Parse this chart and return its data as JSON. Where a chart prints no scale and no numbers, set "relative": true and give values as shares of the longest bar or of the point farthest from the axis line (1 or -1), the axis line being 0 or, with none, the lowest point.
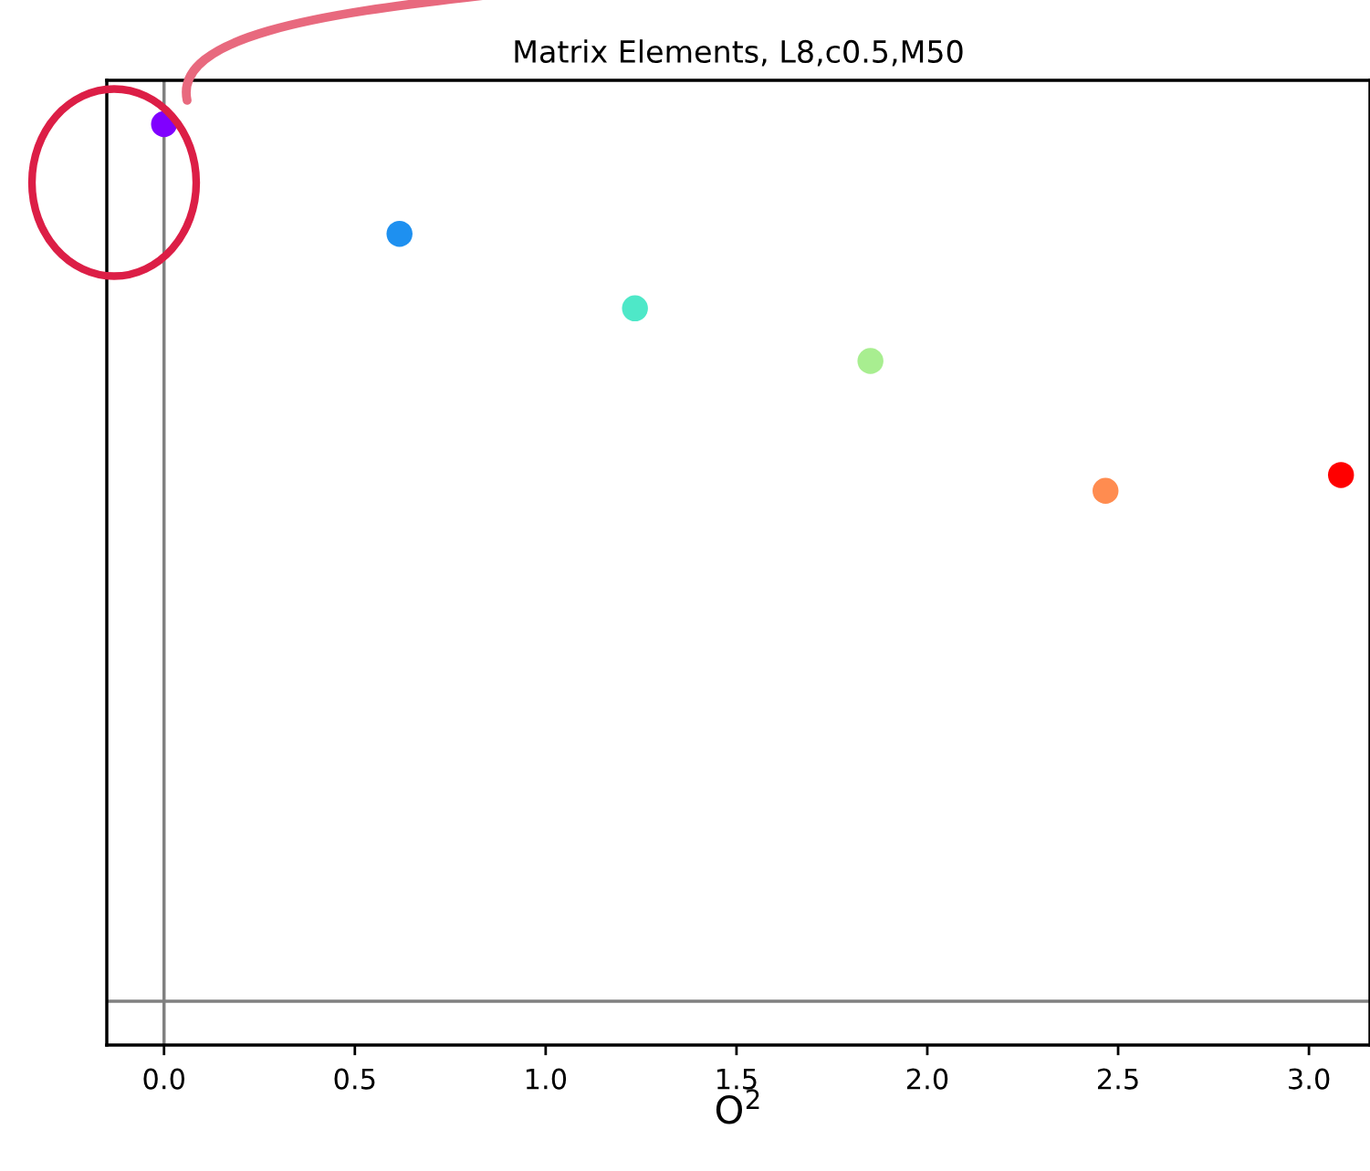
{
  "chart_data": {
    "type": "scatter",
    "title": "Matrix Elements, L8,c0.5,M50",
    "xlabel": "O$^{2}$",
    "x": [
      0,
      0.617,
      1.234,
      1.851,
      2.467,
      3.084
    ],
    "values": [
      1,
      0.875,
      0.79,
      0.73,
      0.582,
      0.6
    ],
    "colors": [
      "#8000ff",
      "#1e90f0",
      "#4ee8c8",
      "#a8ee90",
      "#ff8c50",
      "#ff0000"
    ],
    "relative": true,
    "xlim": [
      -0.15,
      3.16
    ],
    "xticks": [
      {
        "value": 0,
        "label": "0.0"
      },
      {
        "value": 0.5,
        "label": "0.5"
      },
      {
        "value": 1,
        "label": "1.0"
      },
      {
        "value": 1.5,
        "label": "1.5"
      },
      {
        "value": 2,
        "label": "2.0"
      },
      {
        "value": 2.5,
        "label": "2.5"
      },
      {
        "value": 3,
        "label": "3.0"
      }
    ],
    "ref_lines": [
      {
        "axis": "x",
        "value": 0,
        "color": "#808080"
      }
    ],
    "marker": "circle",
    "grid": false,
    "tick_labels": "x"
  }
}
